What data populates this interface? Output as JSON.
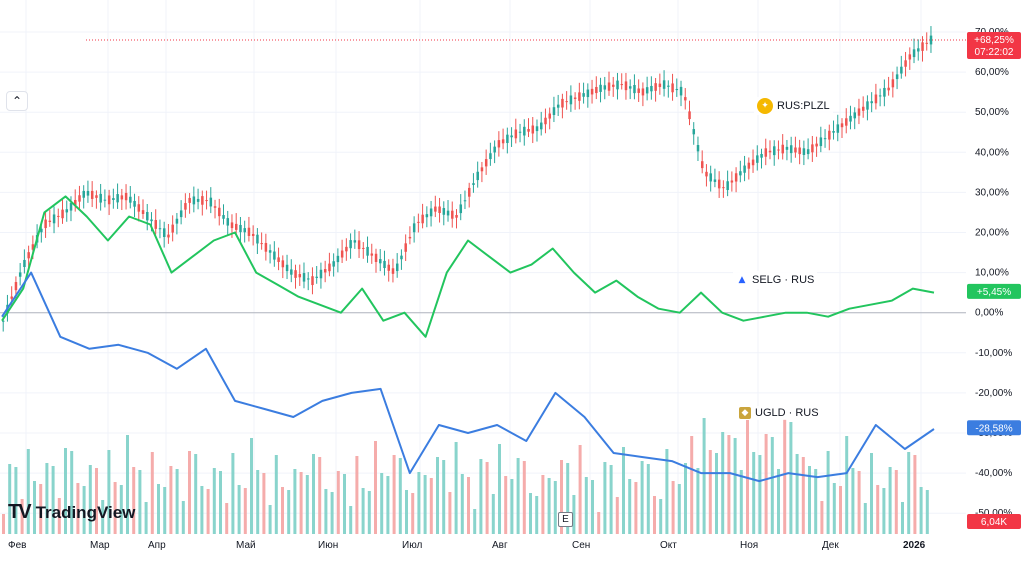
{
  "chart_data": {
    "type": "line",
    "x_labels": [
      "Фев",
      "Мар",
      "Апр",
      "Май",
      "Июн",
      "Июл",
      "Авг",
      "Сен",
      "Окт",
      "Ноя",
      "Дек",
      "2026"
    ],
    "y_ticks": [
      "70,00%",
      "60,00%",
      "50,00%",
      "40,00%",
      "30,00%",
      "20,00%",
      "10,00%",
      "0,00%",
      "-10,00%",
      "-20,00%",
      "-30,00%",
      "-40,00%",
      "-50,00%"
    ],
    "ylim": [
      -50,
      70
    ],
    "series": [
      {
        "name": "RUS:PLZL",
        "style": "candles",
        "values": [
          -2,
          12,
          22,
          25,
          30,
          28,
          29,
          24,
          19,
          28,
          28,
          22,
          20,
          15,
          10,
          8,
          12,
          18,
          14,
          10,
          22,
          26,
          24,
          34,
          42,
          45,
          46,
          52,
          54,
          56,
          57,
          55,
          57,
          55,
          35,
          31,
          36,
          40,
          41,
          40,
          44,
          48,
          52,
          56,
          64,
          68
        ],
        "last_value": "+68,25%",
        "timer": "07:22:02"
      },
      {
        "name": "SELG · RUS",
        "values": [
          -2,
          6,
          25,
          29,
          24,
          18,
          24,
          22,
          10,
          14,
          18,
          20,
          10,
          7,
          4,
          2,
          0,
          6,
          -2,
          0,
          -6,
          10,
          18,
          14,
          10,
          12,
          16,
          10,
          5,
          8,
          4,
          1,
          0,
          5,
          0,
          -2,
          -1,
          0,
          0,
          -1,
          1,
          2,
          3,
          6,
          5
        ],
        "last_value": "+5,45%"
      },
      {
        "name": "UGLD · RUS",
        "values": [
          -1,
          10,
          -6,
          -9,
          -8,
          -10,
          -14,
          -9,
          -22,
          -24,
          -26,
          -22,
          -20,
          -19,
          -40,
          -28,
          -30,
          -28,
          -32,
          -20,
          -26,
          -35,
          -36,
          -37,
          -40,
          -40,
          -42,
          -40,
          -41,
          -40,
          -28,
          -34,
          -29
        ],
        "last_value": "-28,58%"
      }
    ],
    "volume_last": "6,04K",
    "colors": {
      "plzl_up": "#26a69a",
      "plzl_down": "#ef5350",
      "selg": "#22c55e",
      "ugld": "#3b7de0",
      "price_line": "#f23645",
      "vol_up": "#7ccfc6",
      "vol_down": "#f4a3a2"
    },
    "grid": true
  },
  "ui": {
    "collapse_glyph": "⌃",
    "logo_text": "TradingView",
    "logo_mark": "TV",
    "event_marker": "E",
    "plzl_badge_icon": "star-icon",
    "selg_badge_icon": "triangle-icon",
    "ugld_badge_icon": "diamond-icon"
  }
}
